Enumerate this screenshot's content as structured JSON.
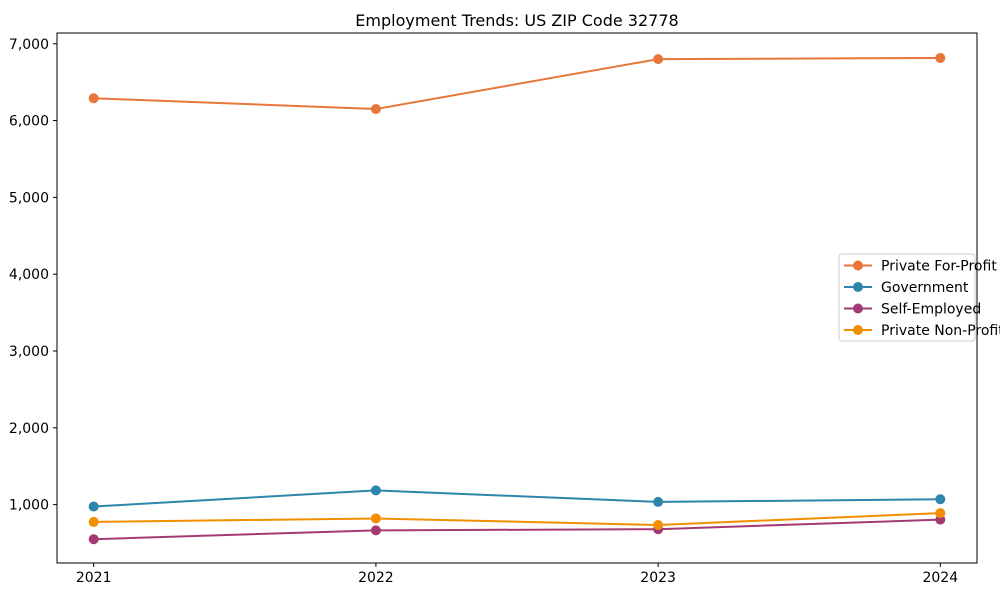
{
  "chart_data": {
    "type": "line",
    "title": "Employment Trends: US ZIP Code 32778",
    "xlabel": "",
    "ylabel": "",
    "categories": [
      "2021",
      "2022",
      "2023",
      "2024"
    ],
    "series": [
      {
        "name": "Private For-Profit",
        "color": "#e8763b",
        "values": [
          6290,
          6150,
          6800,
          6815
        ]
      },
      {
        "name": "Government",
        "color": "#2e86ab",
        "values": [
          975,
          1185,
          1035,
          1070
        ]
      },
      {
        "name": "Self-Employed",
        "color": "#a23b72",
        "values": [
          550,
          665,
          680,
          805
        ]
      },
      {
        "name": "Private Non-Profit",
        "color": "#f18f01",
        "values": [
          775,
          820,
          735,
          890
        ]
      }
    ],
    "ylim": [
      240,
      7140
    ],
    "yticks": [
      1000,
      2000,
      3000,
      4000,
      5000,
      6000,
      7000
    ],
    "ytick_labels": [
      "1,000",
      "2,000",
      "3,000",
      "4,000",
      "5,000",
      "6,000",
      "7,000"
    ],
    "grid": false,
    "legend_position": "center right",
    "legend_border_color": "#cccccc",
    "frame_color": "#000000",
    "marker": "circle",
    "line_width": 2,
    "marker_radius": 5
  }
}
